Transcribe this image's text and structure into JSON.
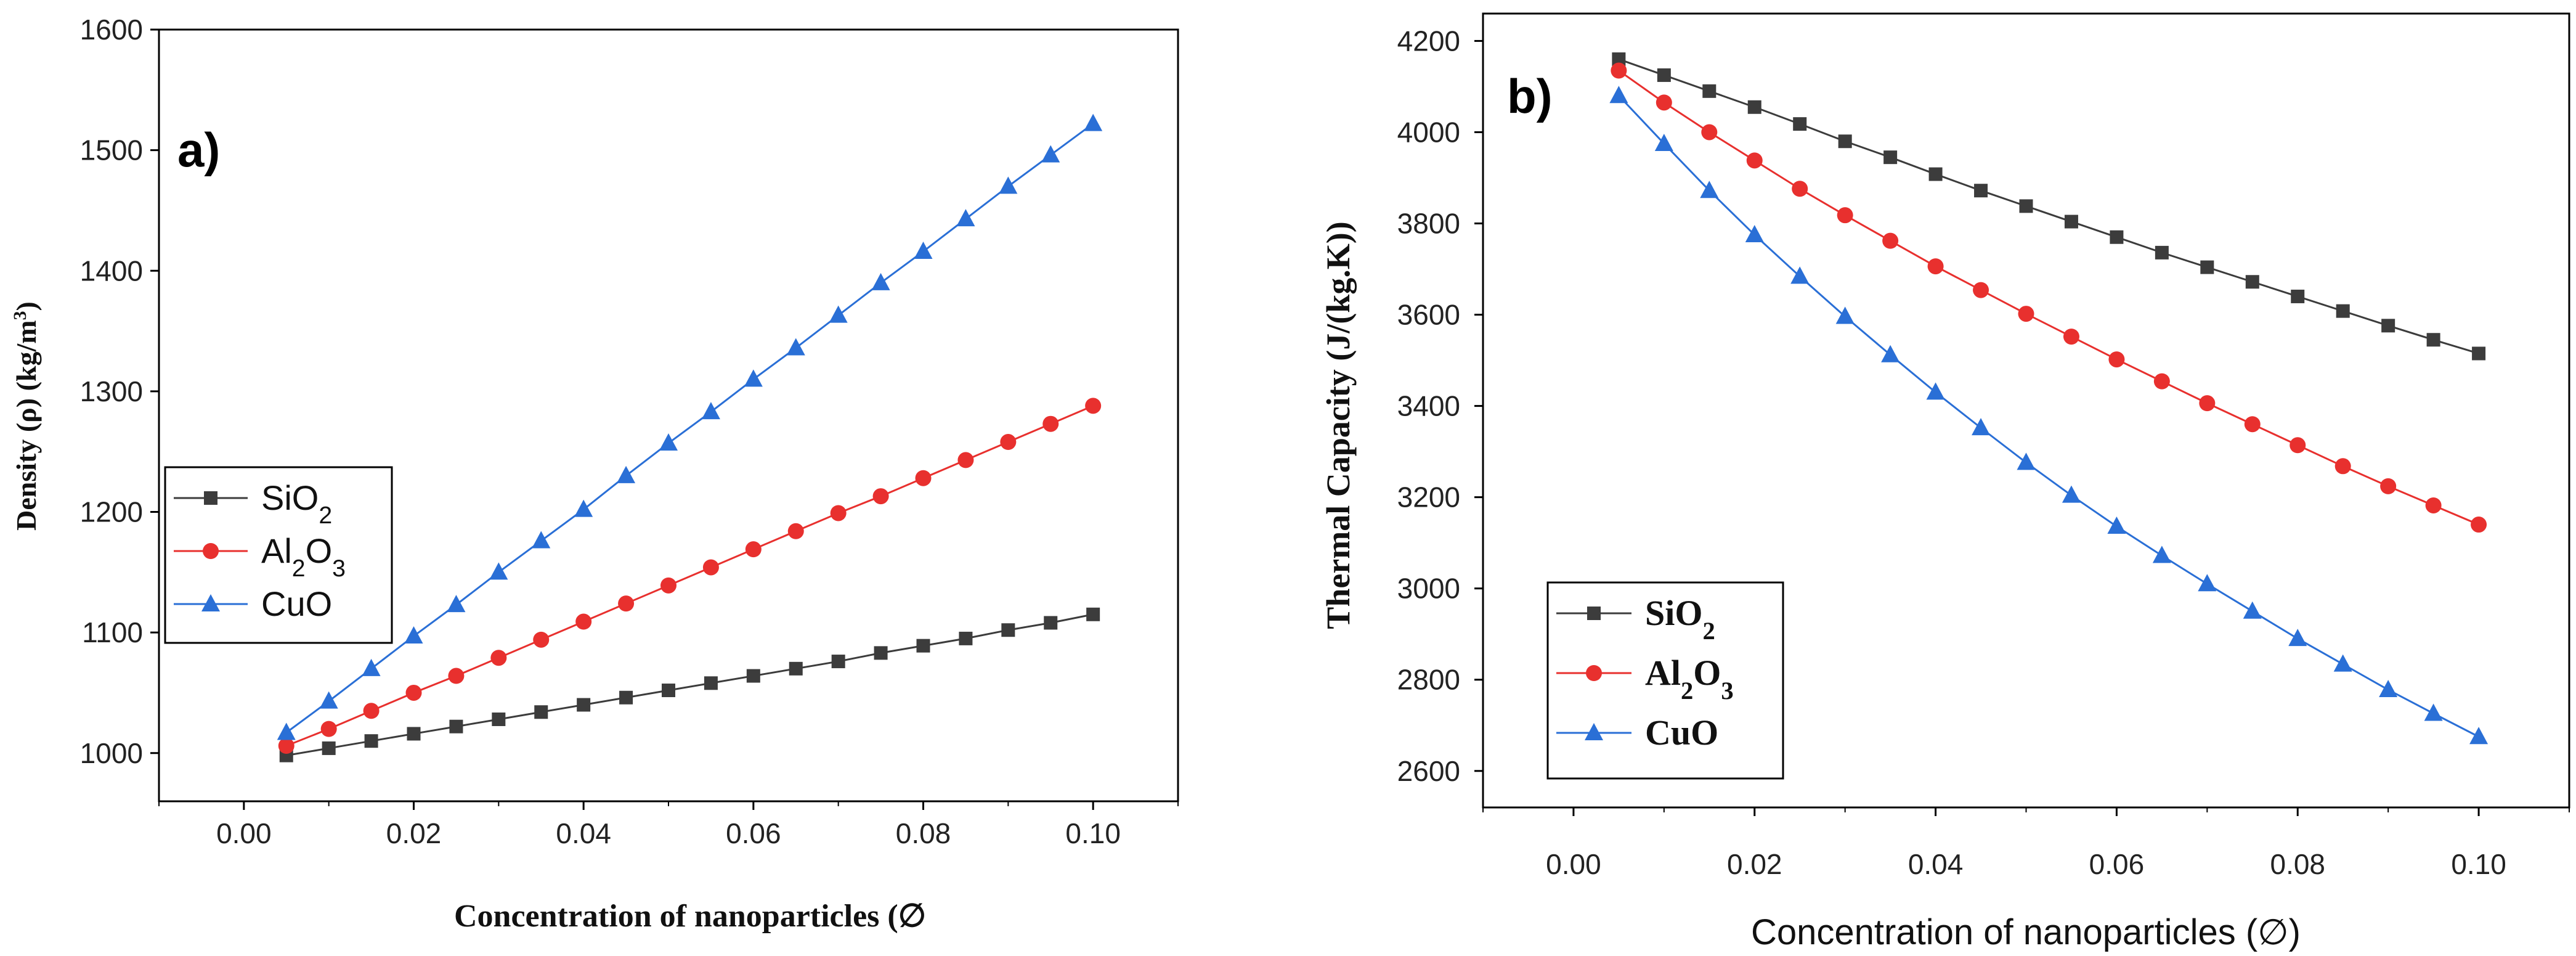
{
  "chart_data": [
    {
      "type": "line",
      "panel_label": "a)",
      "xlabel": "Concentration of nanoparticles (∅",
      "ylabel": "Density (ρ) (kg/m",
      "ylabel_sup": "3",
      "ylabel_close": ")",
      "xlim": [
        -0.01,
        0.11
      ],
      "ylim": [
        960,
        1600
      ],
      "xticks": [
        "0.00",
        "0.02",
        "0.04",
        "0.06",
        "0.08",
        "0.10"
      ],
      "yticks": [
        "1000",
        "1100",
        "1200",
        "1300",
        "1400",
        "1500",
        "1600"
      ],
      "x": [
        0.005,
        0.01,
        0.015,
        0.02,
        0.025,
        0.03,
        0.035,
        0.04,
        0.045,
        0.05,
        0.055,
        0.06,
        0.065,
        0.07,
        0.075,
        0.08,
        0.085,
        0.09,
        0.095,
        0.1
      ],
      "series": [
        {
          "name": "SiO2",
          "label_main": "SiO",
          "label_sub": "2",
          "label_tail": "",
          "color": "#3c3c3c",
          "marker": "square",
          "values": [
            998,
            1004,
            1010,
            1016,
            1022,
            1028,
            1034,
            1040,
            1046,
            1052,
            1058,
            1064,
            1070,
            1076,
            1083,
            1089,
            1095,
            1102,
            1108,
            1115
          ]
        },
        {
          "name": "Al2O3",
          "label_main": "Al",
          "label_sub": "2",
          "label_tail": "O",
          "label_sub2": "3",
          "color": "#e8302e",
          "marker": "circle",
          "values": [
            1006,
            1020,
            1035,
            1050,
            1064,
            1079,
            1094,
            1109,
            1124,
            1139,
            1154,
            1169,
            1184,
            1199,
            1213,
            1228,
            1243,
            1258,
            1273,
            1288
          ]
        },
        {
          "name": "CuO",
          "label_main": "CuO",
          "label_sub": "",
          "label_tail": "",
          "color": "#2a6fd6",
          "marker": "triangle",
          "values": [
            1017,
            1043,
            1070,
            1097,
            1123,
            1150,
            1176,
            1202,
            1230,
            1257,
            1283,
            1310,
            1336,
            1363,
            1390,
            1416,
            1443,
            1470,
            1496,
            1522
          ]
        }
      ]
    },
    {
      "type": "line",
      "panel_label": "b)",
      "xlabel": "Concentration of nanoparticles (∅)",
      "ylabel": "Thermal Capacity (J/(kg.K))",
      "xlim": [
        -0.01,
        0.11
      ],
      "ylim": [
        2520,
        4260
      ],
      "xticks": [
        "0.00",
        "0.02",
        "0.04",
        "0.06",
        "0.08",
        "0.10"
      ],
      "yticks": [
        "2600",
        "2800",
        "3000",
        "3200",
        "3400",
        "3600",
        "3800",
        "4000",
        "4200"
      ],
      "x": [
        0.005,
        0.01,
        0.015,
        0.02,
        0.025,
        0.03,
        0.035,
        0.04,
        0.045,
        0.05,
        0.055,
        0.06,
        0.065,
        0.07,
        0.075,
        0.08,
        0.085,
        0.09,
        0.095,
        0.1
      ],
      "series": [
        {
          "name": "SiO2",
          "label_main": "SiO",
          "label_sub": "2",
          "label_tail": "",
          "color": "#3c3c3c",
          "marker": "square",
          "values": [
            4160,
            4125,
            4090,
            4055,
            4018,
            3980,
            3945,
            3908,
            3872,
            3838,
            3804,
            3770,
            3736,
            3704,
            3672,
            3640,
            3608,
            3576,
            3545,
            3515
          ]
        },
        {
          "name": "Al2O3",
          "label_main": "Al",
          "label_sub": "2",
          "label_tail": "O",
          "label_sub2": "3",
          "color": "#e8302e",
          "marker": "circle",
          "values": [
            4135,
            4065,
            4000,
            3938,
            3876,
            3818,
            3762,
            3706,
            3654,
            3602,
            3552,
            3502,
            3454,
            3406,
            3360,
            3314,
            3268,
            3224,
            3182,
            3140
          ]
        },
        {
          "name": "CuO",
          "label_main": "CuO",
          "label_sub": "",
          "label_tail": "",
          "color": "#2a6fd6",
          "marker": "triangle",
          "values": [
            4080,
            3975,
            3872,
            3775,
            3684,
            3596,
            3512,
            3430,
            3352,
            3276,
            3204,
            3136,
            3072,
            3010,
            2950,
            2890,
            2834,
            2778,
            2726,
            2675
          ]
        }
      ]
    }
  ]
}
